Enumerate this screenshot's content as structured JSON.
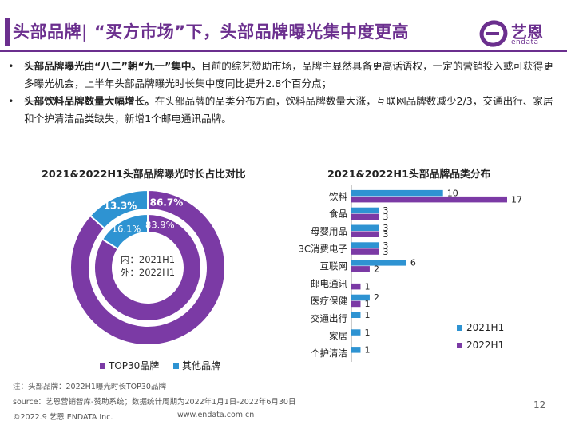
{
  "header": {
    "title": "头部品牌| “买方市场”下，头部品牌曝光集中度更高",
    "logo_text": "艺恩",
    "logo_sub": "endata"
  },
  "bullets": [
    {
      "dot": "•",
      "bold": "头部品牌曝光由“八二”朝“九一”集中。",
      "text": "目前的综艺赞助市场，品牌主显然具备更高话语权，一定的营销投入或可获得更多曝光机会，上半年头部品牌曝光时长集中度同比提升2.8个百分点；"
    },
    {
      "dot": "•",
      "bold": "头部饮料品牌数量大幅增长。",
      "text": "在头部品牌的品类分布方面，饮料品牌数量大涨，互联网品牌数减少2/3，交通出行、家居和个护清洁品类缺失，新增1个邮电通讯品牌。"
    }
  ],
  "donut": {
    "title": "2021&2022H1头部品牌曝光时长占比对比",
    "center_line1": "内：2021H1",
    "center_line2": "外：2022H1",
    "legend_top30": "TOP30品牌",
    "legend_other": "其他品牌"
  },
  "bars": {
    "title": "2021&2022H1头部品牌品类分布",
    "legend_2021": "2021H1",
    "legend_2022": "2022H1"
  },
  "chart_data": [
    {
      "type": "pie",
      "title": "2021&2022H1头部品牌曝光时长占比对比",
      "labels": [
        "TOP30品牌",
        "其他品牌"
      ],
      "series": [
        {
          "name": "2021H1",
          "values": [
            83.9,
            16.1
          ],
          "value_labels": [
            "83.9%",
            "16.1%"
          ]
        },
        {
          "name": "2022H1",
          "values": [
            86.7,
            13.3
          ],
          "value_labels": [
            "86.7%",
            "13.3%"
          ]
        }
      ],
      "colors": {
        "TOP30品牌": "#7b3aa5",
        "其他品牌": "#2e93d2"
      },
      "legend_placement": "bottom"
    },
    {
      "type": "bar",
      "orientation": "horizontal",
      "title": "2021&2022H1头部品牌品类分布",
      "categories": [
        "饮料",
        "食品",
        "母婴用品",
        "3C消费电子",
        "互联网",
        "邮电通讯",
        "医疗保健",
        "交通出行",
        "家居",
        "个护清洁"
      ],
      "series": [
        {
          "name": "2021H1",
          "color": "#2e93d2",
          "values": [
            10,
            3,
            3,
            3,
            6,
            null,
            2,
            1,
            1,
            1
          ]
        },
        {
          "name": "2022H1",
          "color": "#7b3aa5",
          "values": [
            17,
            3,
            3,
            3,
            2,
            1,
            1,
            null,
            null,
            null
          ]
        }
      ],
      "xlim": [
        0,
        17
      ],
      "grid": false,
      "legend_placement": "right"
    }
  ],
  "footer": {
    "note": "注：头部品牌：2022H1曝光时长TOP30品牌",
    "source": "source：艺恩营销智库-赞助系统；数据统计周期为2022年1月1日-2022年6月30日",
    "copyright": "©2022.9 艺恩 ENDATA Inc.",
    "website": "www.endata.com.cn",
    "page": "12"
  }
}
